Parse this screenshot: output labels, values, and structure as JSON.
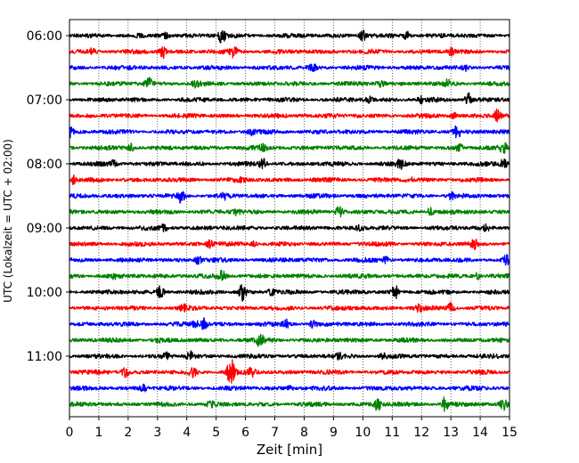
{
  "chart_data": {
    "type": "line",
    "title": "",
    "xlabel": "Zeit  [min]",
    "ylabel": "UTC (Lokalzeit = UTC + 02:00)",
    "xlim": [
      0,
      15
    ],
    "x_ticks": [
      "0",
      "1",
      "2",
      "3",
      "4",
      "5",
      "6",
      "7",
      "8",
      "9",
      "10",
      "11",
      "12",
      "13",
      "14",
      "15"
    ],
    "y_ticks": [
      "06:00",
      "07:00",
      "08:00",
      "09:00",
      "10:00",
      "11:00"
    ],
    "grid": "vertical dotted at each minute",
    "legend": "none",
    "trace_minutes": 15,
    "trace_colors": [
      "#000000",
      "#ff0000",
      "#0000ff",
      "#008000"
    ],
    "traces": [
      {
        "start": "06:00",
        "color": "#000000",
        "events": [
          [
            5.2,
            1.2
          ],
          [
            10.0,
            0.7
          ],
          [
            11.5,
            0.6
          ],
          [
            3.3,
            0.4
          ]
        ]
      },
      {
        "start": "06:15",
        "color": "#ff0000",
        "events": [
          [
            3.2,
            1.0
          ],
          [
            5.6,
            0.8
          ],
          [
            0.8,
            0.5
          ],
          [
            13.0,
            0.5
          ]
        ]
      },
      {
        "start": "06:30",
        "color": "#0000ff",
        "events": [
          [
            8.3,
            0.5
          ],
          [
            13.5,
            0.4
          ]
        ]
      },
      {
        "start": "06:45",
        "color": "#008000",
        "events": [
          [
            2.7,
            0.8
          ],
          [
            10.6,
            0.7
          ],
          [
            4.3,
            0.4
          ],
          [
            12.9,
            0.5
          ]
        ]
      },
      {
        "start": "07:00",
        "color": "#000000",
        "events": [
          [
            13.6,
            1.0
          ],
          [
            10.2,
            0.4
          ],
          [
            12.0,
            0.4
          ]
        ]
      },
      {
        "start": "07:15",
        "color": "#ff0000",
        "events": [
          [
            14.6,
            1.0
          ],
          [
            13.1,
            0.4
          ],
          [
            8.0,
            0.3
          ]
        ]
      },
      {
        "start": "07:30",
        "color": "#0000ff",
        "events": [
          [
            13.2,
            1.1
          ],
          [
            0.0,
            0.8
          ],
          [
            6.2,
            0.4
          ]
        ]
      },
      {
        "start": "07:45",
        "color": "#008000",
        "events": [
          [
            2.1,
            0.6
          ],
          [
            6.6,
            0.5
          ],
          [
            13.3,
            0.5
          ],
          [
            14.8,
            0.7
          ]
        ]
      },
      {
        "start": "08:00",
        "color": "#000000",
        "events": [
          [
            6.6,
            0.8
          ],
          [
            11.3,
            0.7
          ],
          [
            14.8,
            0.8
          ],
          [
            1.5,
            0.5
          ]
        ]
      },
      {
        "start": "08:15",
        "color": "#ff0000",
        "events": [
          [
            0.1,
            0.7
          ],
          [
            5.8,
            0.5
          ],
          [
            11.6,
            0.4
          ]
        ]
      },
      {
        "start": "08:30",
        "color": "#0000ff",
        "events": [
          [
            3.8,
            1.0
          ],
          [
            13.0,
            0.5
          ],
          [
            5.3,
            0.4
          ]
        ]
      },
      {
        "start": "08:45",
        "color": "#008000",
        "events": [
          [
            9.2,
            0.8
          ],
          [
            12.3,
            0.6
          ],
          [
            5.7,
            0.4
          ]
        ]
      },
      {
        "start": "09:00",
        "color": "#000000",
        "events": [
          [
            3.2,
            0.5
          ],
          [
            9.9,
            0.4
          ],
          [
            14.2,
            0.4
          ]
        ]
      },
      {
        "start": "09:15",
        "color": "#ff0000",
        "events": [
          [
            4.8,
            0.6
          ],
          [
            13.8,
            0.7
          ],
          [
            6.3,
            0.4
          ]
        ]
      },
      {
        "start": "09:30",
        "color": "#0000ff",
        "events": [
          [
            4.4,
            0.6
          ],
          [
            10.8,
            0.5
          ],
          [
            14.9,
            0.6
          ]
        ]
      },
      {
        "start": "09:45",
        "color": "#008000",
        "events": [
          [
            5.2,
            0.7
          ],
          [
            13.9,
            0.5
          ],
          [
            1.5,
            0.3
          ]
        ]
      },
      {
        "start": "10:00",
        "color": "#000000",
        "events": [
          [
            5.9,
            1.3
          ],
          [
            11.1,
            1.0
          ],
          [
            3.1,
            0.9
          ],
          [
            6.9,
            0.4
          ]
        ]
      },
      {
        "start": "10:15",
        "color": "#ff0000",
        "events": [
          [
            13.0,
            0.9
          ],
          [
            3.9,
            0.4
          ],
          [
            11.9,
            0.5
          ]
        ]
      },
      {
        "start": "10:30",
        "color": "#0000ff",
        "events": [
          [
            4.6,
            0.9
          ],
          [
            7.4,
            0.6
          ],
          [
            8.3,
            0.5
          ],
          [
            4.3,
            0.4
          ]
        ]
      },
      {
        "start": "10:45",
        "color": "#008000",
        "events": [
          [
            6.5,
            0.9
          ],
          [
            3.0,
            0.3
          ]
        ]
      },
      {
        "start": "11:00",
        "color": "#000000",
        "events": [
          [
            4.1,
            0.7
          ],
          [
            3.3,
            0.5
          ],
          [
            9.2,
            0.4
          ],
          [
            10.7,
            0.4
          ]
        ]
      },
      {
        "start": "11:15",
        "color": "#ff0000",
        "events": [
          [
            5.5,
            2.2
          ],
          [
            1.9,
            0.8
          ],
          [
            4.2,
            0.7
          ],
          [
            6.2,
            0.6
          ]
        ]
      },
      {
        "start": "11:30",
        "color": "#0000ff",
        "events": [
          [
            2.5,
            0.5
          ],
          [
            7.5,
            0.3
          ]
        ]
      },
      {
        "start": "11:45",
        "color": "#008000",
        "events": [
          [
            12.8,
            1.2
          ],
          [
            10.5,
            0.9
          ],
          [
            14.8,
            0.8
          ],
          [
            4.8,
            0.4
          ]
        ]
      }
    ]
  }
}
